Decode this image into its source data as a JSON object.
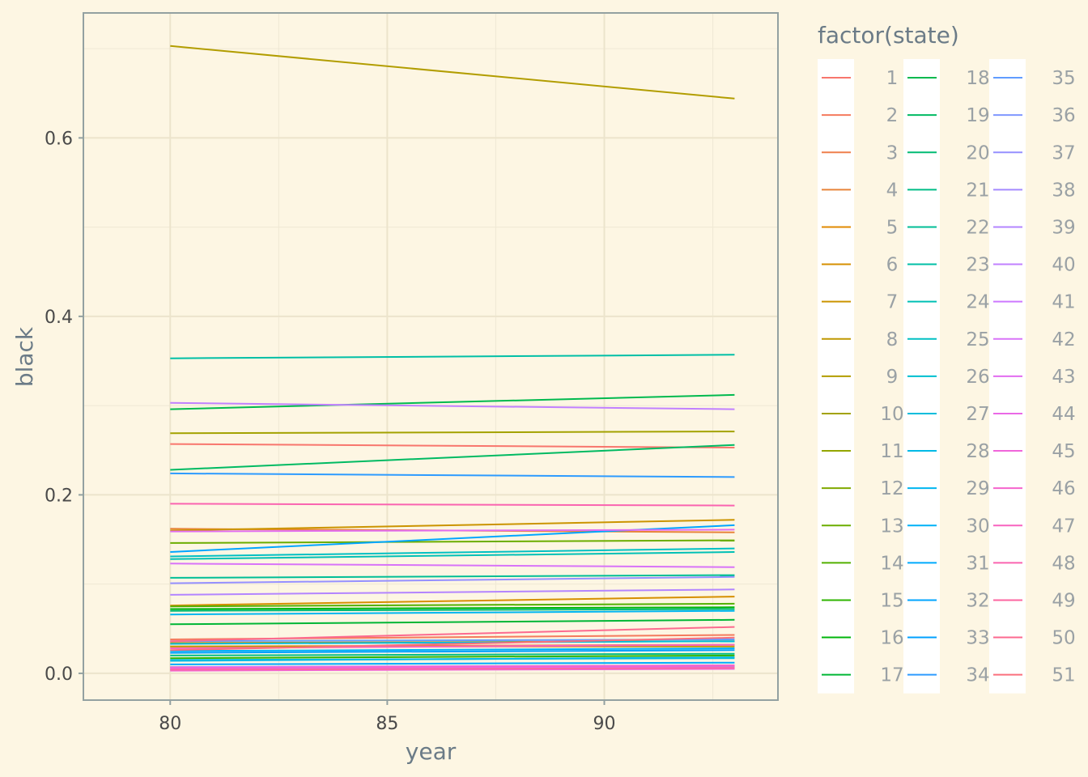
{
  "chart_data": {
    "type": "line",
    "xlabel": "year",
    "ylabel": "black",
    "xlim": [
      78.0,
      94.0
    ],
    "ylim": [
      -0.03,
      0.74
    ],
    "x_ticks": [
      80,
      85,
      90
    ],
    "y_ticks": [
      0.0,
      0.2,
      0.4,
      0.6
    ],
    "x_tick_labels": [
      "80",
      "85",
      "90"
    ],
    "y_tick_labels": [
      "0.0",
      "0.2",
      "0.4",
      "0.6"
    ],
    "grid": true,
    "legend": {
      "title": "factor(state)",
      "placement": "right",
      "columns": 3
    },
    "x": [
      80,
      93
    ],
    "series": [
      {
        "name": "1",
        "color": "#F8766D",
        "values": [
          0.257,
          0.253
        ]
      },
      {
        "name": "2",
        "color": "#F47A5D",
        "values": [
          0.038,
          0.043
        ]
      },
      {
        "name": "3",
        "color": "#EF7F4C",
        "values": [
          0.03,
          0.032
        ]
      },
      {
        "name": "4",
        "color": "#E8843A",
        "values": [
          0.162,
          0.158
        ]
      },
      {
        "name": "5",
        "color": "#E08A00",
        "values": [
          0.034,
          0.036
        ]
      },
      {
        "name": "6",
        "color": "#D68F00",
        "values": [
          0.076,
          0.086
        ]
      },
      {
        "name": "7",
        "color": "#CB9400",
        "values": [
          0.16,
          0.172
        ]
      },
      {
        "name": "8",
        "color": "#BF9800",
        "values": [
          0.03,
          0.03
        ]
      },
      {
        "name": "9",
        "color": "#B29D00",
        "values": [
          0.703,
          0.644
        ]
      },
      {
        "name": "10",
        "color": "#A3A200",
        "values": [
          0.269,
          0.271
        ]
      },
      {
        "name": "11",
        "color": "#93A600",
        "values": [
          0.007,
          0.008
        ]
      },
      {
        "name": "12",
        "color": "#80A900",
        "values": [
          0.004,
          0.006
        ]
      },
      {
        "name": "13",
        "color": "#6BAD00",
        "values": [
          0.146,
          0.149
        ]
      },
      {
        "name": "14",
        "color": "#53B000",
        "values": [
          0.075,
          0.078
        ]
      },
      {
        "name": "15",
        "color": "#2FB400",
        "values": [
          0.017,
          0.02
        ]
      },
      {
        "name": "16",
        "color": "#00B50B",
        "values": [
          0.072,
          0.074
        ]
      },
      {
        "name": "17",
        "color": "#00B635",
        "values": [
          0.055,
          0.06
        ]
      },
      {
        "name": "18",
        "color": "#00B94E",
        "values": [
          0.296,
          0.312
        ]
      },
      {
        "name": "19",
        "color": "#00BA62",
        "values": [
          0.228,
          0.256
        ]
      },
      {
        "name": "20",
        "color": "#00BB73",
        "values": [
          0.07,
          0.072
        ]
      },
      {
        "name": "21",
        "color": "#00BD86",
        "values": [
          0.02,
          0.022
        ]
      },
      {
        "name": "22",
        "color": "#00BE96",
        "values": [
          0.107,
          0.11
        ]
      },
      {
        "name": "23",
        "color": "#00BFA6",
        "values": [
          0.353,
          0.357
        ]
      },
      {
        "name": "24",
        "color": "#00C0B5",
        "values": [
          0.128,
          0.136
        ]
      },
      {
        "name": "25",
        "color": "#00C0C3",
        "values": [
          0.131,
          0.14
        ]
      },
      {
        "name": "26",
        "color": "#00BFD0",
        "values": [
          0.015,
          0.017
        ]
      },
      {
        "name": "27",
        "color": "#00BDDC",
        "values": [
          0.033,
          0.036
        ]
      },
      {
        "name": "28",
        "color": "#00BAE6",
        "values": [
          0.014,
          0.018
        ]
      },
      {
        "name": "29",
        "color": "#00B6F0",
        "values": [
          0.066,
          0.07
        ]
      },
      {
        "name": "30",
        "color": "#00B1F7",
        "values": [
          0.025,
          0.028
        ]
      },
      {
        "name": "31",
        "color": "#00ABFD",
        "values": [
          0.01,
          0.012
        ]
      },
      {
        "name": "32",
        "color": "#00A5FF",
        "values": [
          0.136,
          0.166
        ]
      },
      {
        "name": "33",
        "color": "#00A0FF",
        "values": [
          0.023,
          0.026
        ]
      },
      {
        "name": "34",
        "color": "#2D9BFF",
        "values": [
          0.224,
          0.22
        ]
      },
      {
        "name": "35",
        "color": "#619CFF",
        "values": [
          0.036,
          0.038
        ]
      },
      {
        "name": "36",
        "color": "#7F97FF",
        "values": [
          0.004,
          0.005
        ]
      },
      {
        "name": "37",
        "color": "#9590FF",
        "values": [
          0.101,
          0.108
        ]
      },
      {
        "name": "38",
        "color": "#A58AFF",
        "values": [
          0.006,
          0.007
        ]
      },
      {
        "name": "39",
        "color": "#B385FF",
        "values": [
          0.088,
          0.094
        ]
      },
      {
        "name": "40",
        "color": "#C180FF",
        "values": [
          0.303,
          0.296
        ]
      },
      {
        "name": "41",
        "color": "#CD79FF",
        "values": [
          0.007,
          0.009
        ]
      },
      {
        "name": "42",
        "color": "#D873F8",
        "values": [
          0.123,
          0.119
        ]
      },
      {
        "name": "43",
        "color": "#E26DF0",
        "values": [
          0.159,
          0.161
        ]
      },
      {
        "name": "44",
        "color": "#EA69E6",
        "values": [
          0.005,
          0.007
        ]
      },
      {
        "name": "45",
        "color": "#F066DA",
        "values": [
          0.003,
          0.005
        ]
      },
      {
        "name": "46",
        "color": "#F564CD",
        "values": [
          0.006,
          0.009
        ]
      },
      {
        "name": "47",
        "color": "#F863BF",
        "values": [
          0.028,
          0.032
        ]
      },
      {
        "name": "48",
        "color": "#FA64B0",
        "values": [
          0.19,
          0.188
        ]
      },
      {
        "name": "49",
        "color": "#FC66A0",
        "values": [
          0.004,
          0.006
        ]
      },
      {
        "name": "50",
        "color": "#FC6A8F",
        "values": [
          0.036,
          0.052
        ]
      },
      {
        "name": "51",
        "color": "#FB6F7D",
        "values": [
          0.026,
          0.04
        ]
      }
    ]
  }
}
